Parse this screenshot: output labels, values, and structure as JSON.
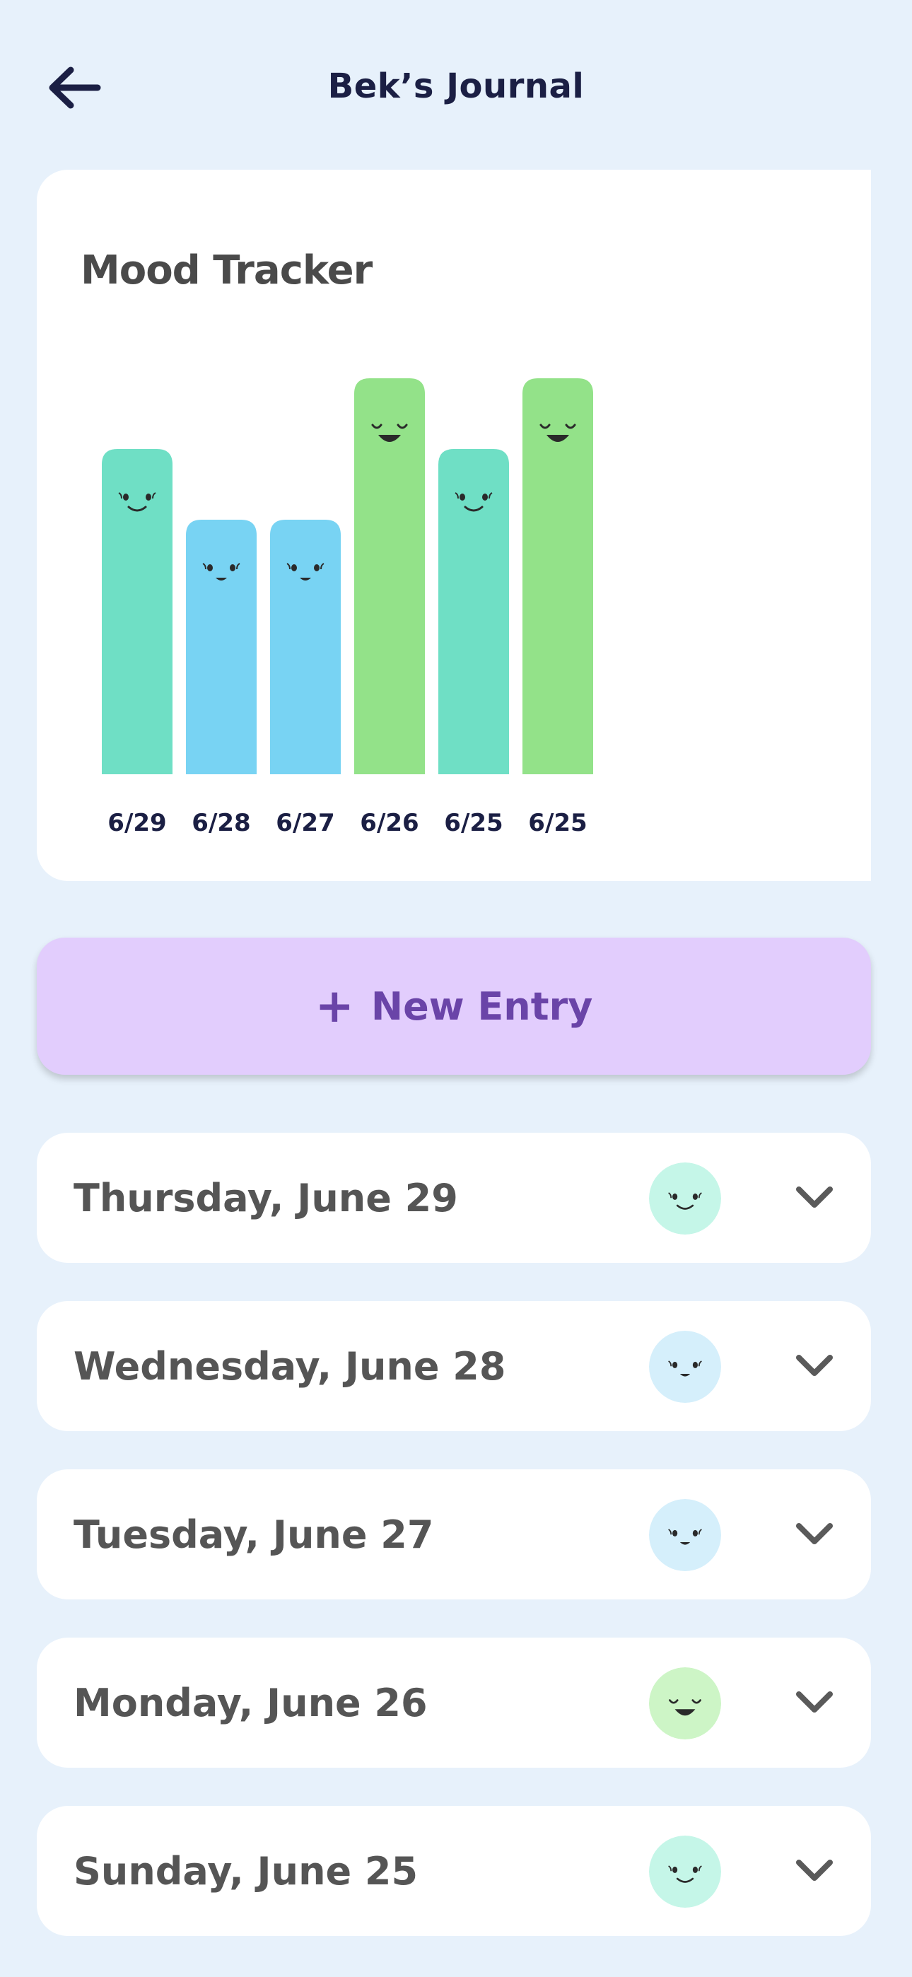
{
  "header": {
    "title": "Bek’s Journal",
    "back_icon": "arrow-left-icon"
  },
  "mood_tracker": {
    "title": "Mood Tracker"
  },
  "chart_data": {
    "type": "bar",
    "categories": [
      "6/29",
      "6/28",
      "6/27",
      "6/26",
      "6/25",
      "6/25"
    ],
    "values": [
      2,
      1,
      1,
      3,
      2,
      3
    ],
    "moods": [
      "content",
      "neutral",
      "neutral",
      "happy",
      "content",
      "happy"
    ],
    "colors": {
      "content": "#6fdfc5",
      "neutral": "#78d3f3",
      "happy": "#93e289"
    },
    "ylim": [
      0,
      3
    ]
  },
  "new_entry": {
    "label": "New Entry",
    "icon": "plus-icon"
  },
  "entries": [
    {
      "date": "Thursday, June 29",
      "mood": "content",
      "face_color": "#c5f6e8"
    },
    {
      "date": "Wednesday, June 28",
      "mood": "neutral",
      "face_color": "#d5effb"
    },
    {
      "date": "Tuesday, June 27",
      "mood": "neutral",
      "face_color": "#d5effb"
    },
    {
      "date": "Monday, June 26",
      "mood": "happy",
      "face_color": "#cdf5c6"
    },
    {
      "date": "Sunday, June 25",
      "mood": "content",
      "face_color": "#c5f6e8"
    }
  ]
}
